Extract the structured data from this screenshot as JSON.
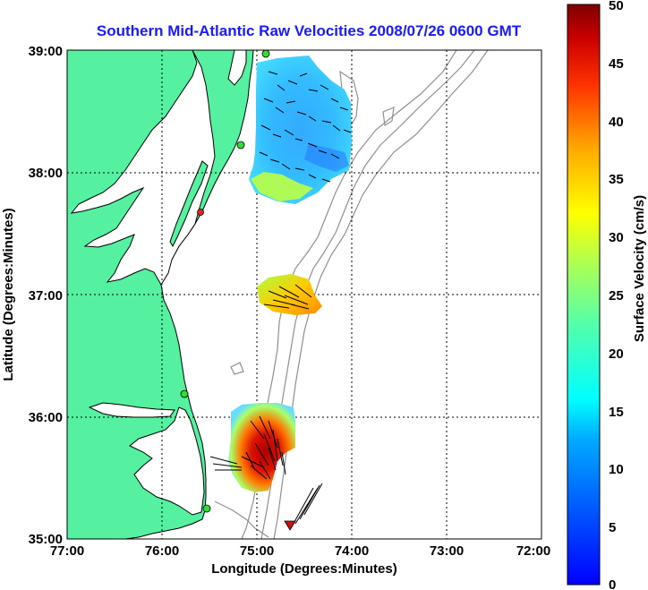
{
  "title": "Southern Mid-Atlantic Raw Velocities 2008/07/26 0600 GMT",
  "x_axis": {
    "label": "Longitude (Degrees:Minutes)",
    "ticks": [
      "77:00",
      "76:00",
      "75:00",
      "74:00",
      "73:00",
      "72:00"
    ]
  },
  "y_axis": {
    "label": "Latitude (Degrees:Minutes)",
    "ticks": [
      "39:00",
      "38:00",
      "37:00",
      "36:00",
      "35:00"
    ]
  },
  "colorbar": {
    "label": "Surface Velocity (cm/s)",
    "ticks": [
      "50",
      "45",
      "40",
      "35",
      "30",
      "25",
      "20",
      "15",
      "10",
      "5",
      "0"
    ],
    "min": 0,
    "max": 50
  },
  "colors": {
    "land": "#55f0a0",
    "water": "#ffffff",
    "title": "#1a1aff",
    "coastline": "#000000",
    "bathymetry": "#909090",
    "station_green": "#33dd33",
    "station_red": "#ee2222"
  }
}
